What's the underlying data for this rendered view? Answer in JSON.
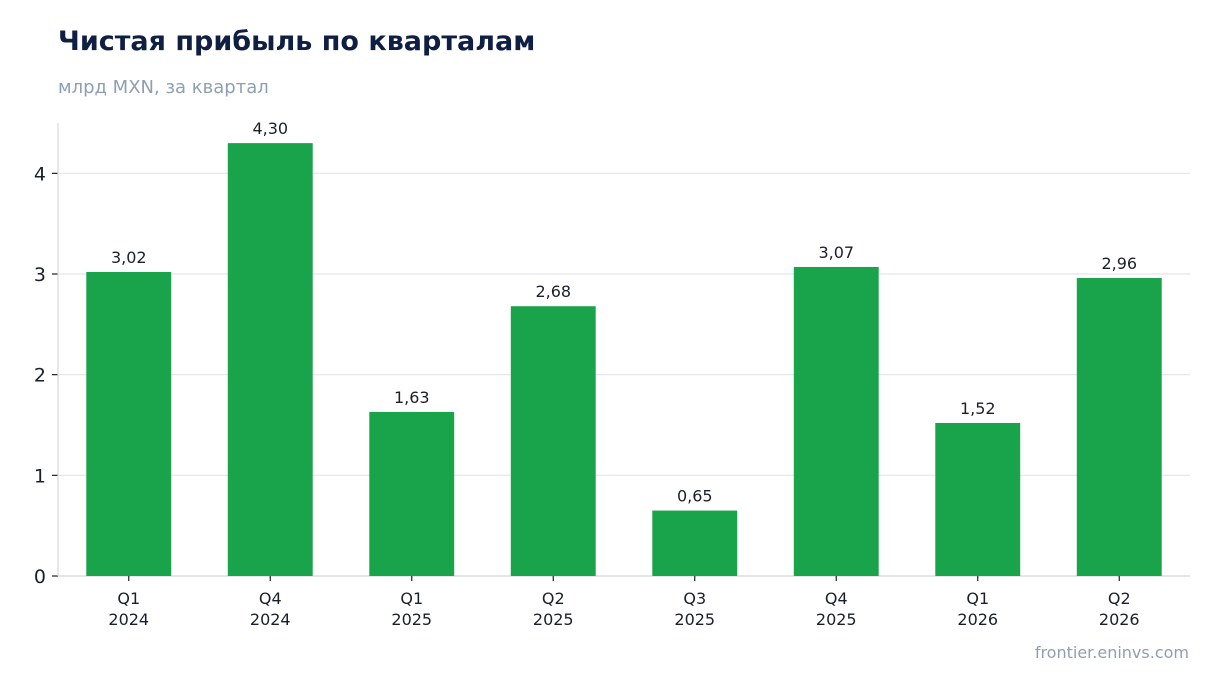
{
  "header": {
    "title": "Чистая прибыль по кварталам",
    "subtitle": "млрд MXN, за квартал"
  },
  "footer": {
    "source": "frontier.eninvs.com"
  },
  "colors": {
    "bar": "#19a34a",
    "grid": "#e2e5ee",
    "axis": "#d4d8e0",
    "text": "#1a1f2b",
    "title": "#0f1f44",
    "muted": "#8f9fb3"
  },
  "chart_data": {
    "type": "bar",
    "categories": [
      [
        "Q1",
        "2024"
      ],
      [
        "Q4",
        "2024"
      ],
      [
        "Q1",
        "2025"
      ],
      [
        "Q2",
        "2025"
      ],
      [
        "Q3",
        "2025"
      ],
      [
        "Q4",
        "2025"
      ],
      [
        "Q1",
        "2026"
      ],
      [
        "Q2",
        "2026"
      ]
    ],
    "values": [
      3.02,
      4.3,
      1.63,
      2.68,
      0.65,
      3.07,
      1.52,
      2.96
    ],
    "value_labels": [
      "3,02",
      "4,30",
      "1,63",
      "2,68",
      "0,65",
      "3,07",
      "1,52",
      "2,96"
    ],
    "title": "Чистая прибыль по кварталам",
    "subtitle": "млрд MXN, за квартал",
    "yticks": [
      0,
      1,
      2,
      3,
      4
    ],
    "ylim": [
      0,
      4.5
    ],
    "grid": true
  }
}
